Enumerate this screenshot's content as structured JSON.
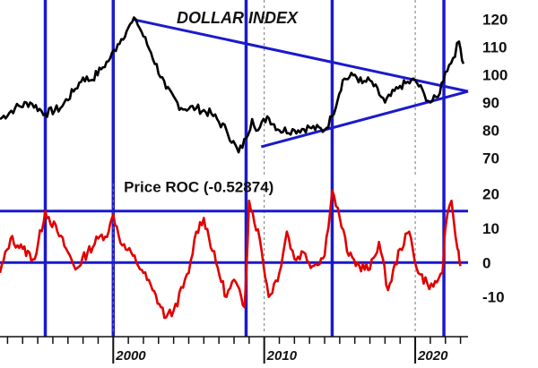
{
  "chart_data": [
    {
      "type": "line",
      "title": "DOLLAR INDEX",
      "x_range": [
        1992.5,
        2023.5
      ],
      "ylim": [
        63,
        127
      ],
      "y_ticks": [
        70,
        80,
        90,
        100,
        110,
        120
      ],
      "grid": "vertical dashed lines at 2000, 2010, 2020",
      "series": [
        {
          "color": "#000000",
          "x": [
            1992.5,
            1993.5,
            1994.5,
            1995.5,
            1996.5,
            1997.5,
            1998.0,
            1998.5,
            1999.2,
            1999.8,
            2000.3,
            2001.0,
            2001.5,
            2002.5,
            2003.5,
            2004.5,
            2005.5,
            2006.5,
            2007.5,
            2008.3,
            2008.8,
            2009.2,
            2009.6,
            2010.2,
            2011.0,
            2012.0,
            2013.0,
            2014.0,
            2014.5,
            2015.2,
            2016.0,
            2016.5,
            2017.0,
            2018.0,
            2019.0,
            2020.0,
            2020.6,
            2021.0,
            2021.5,
            2022.0,
            2022.5,
            2022.9,
            2023.2
          ],
          "y": [
            84,
            88,
            90,
            86,
            88,
            95,
            99,
            98,
            102,
            106,
            111,
            117,
            120,
            108,
            95,
            88,
            88,
            86,
            80,
            72,
            77,
            84,
            80,
            85,
            80,
            80,
            81,
            80,
            85,
            98,
            100,
            97,
            98,
            90,
            96,
            98,
            93,
            90,
            92,
            101,
            106,
            112,
            104
          ]
        }
      ],
      "trendlines": [
        {
          "name": "upper",
          "from": [
            2001.3,
            120
          ],
          "to": [
            2023.5,
            94
          ]
        },
        {
          "name": "lower",
          "from": [
            2009.8,
            74
          ],
          "to": [
            2023.5,
            94
          ]
        }
      ],
      "vertical_markers": [
        1995.5,
        2000.0,
        2008.8,
        2014.5,
        2021.9
      ]
    },
    {
      "type": "line",
      "title": "Price ROC (-0.52874)",
      "x_range": [
        1992.5,
        2023.5
      ],
      "ylim": [
        -20,
        23
      ],
      "y_ticks": [
        -10,
        0,
        10,
        20
      ],
      "x_ticks": [
        "2000",
        "2010",
        "2020"
      ],
      "reference_lines": [
        15,
        0
      ],
      "series": [
        {
          "color": "#e00000",
          "x": [
            1992.5,
            1993.2,
            1994.0,
            1994.8,
            1995.5,
            1996.3,
            1997.0,
            1997.5,
            1998.3,
            1999.0,
            1999.7,
            2000.0,
            2000.6,
            2001.3,
            2002.0,
            2002.6,
            2003.5,
            2004.0,
            2005.0,
            2005.5,
            2006.0,
            2006.8,
            2007.5,
            2008.0,
            2008.7,
            2009.0,
            2009.7,
            2010.3,
            2011.0,
            2011.5,
            2012.0,
            2012.6,
            2013.2,
            2014.0,
            2014.5,
            2015.0,
            2015.6,
            2016.3,
            2017.0,
            2017.6,
            2018.2,
            2019.0,
            2019.6,
            2020.2,
            2020.8,
            2021.2,
            2021.8,
            2022.0,
            2022.4,
            2022.8,
            2023.0
          ],
          "y": [
            -3,
            7,
            4,
            1,
            15,
            9,
            3,
            -2,
            3,
            7,
            9,
            14,
            5,
            2,
            -3,
            -8,
            -16,
            -14,
            -3,
            9,
            13,
            0,
            -10,
            -5,
            -13,
            18,
            7,
            -10,
            -3,
            9,
            1,
            3,
            -1,
            2,
            21,
            13,
            2,
            -1,
            -2,
            6,
            -8,
            4,
            9,
            -3,
            -6,
            -7,
            -3,
            10,
            18,
            4,
            -1
          ]
        }
      ]
    }
  ]
}
